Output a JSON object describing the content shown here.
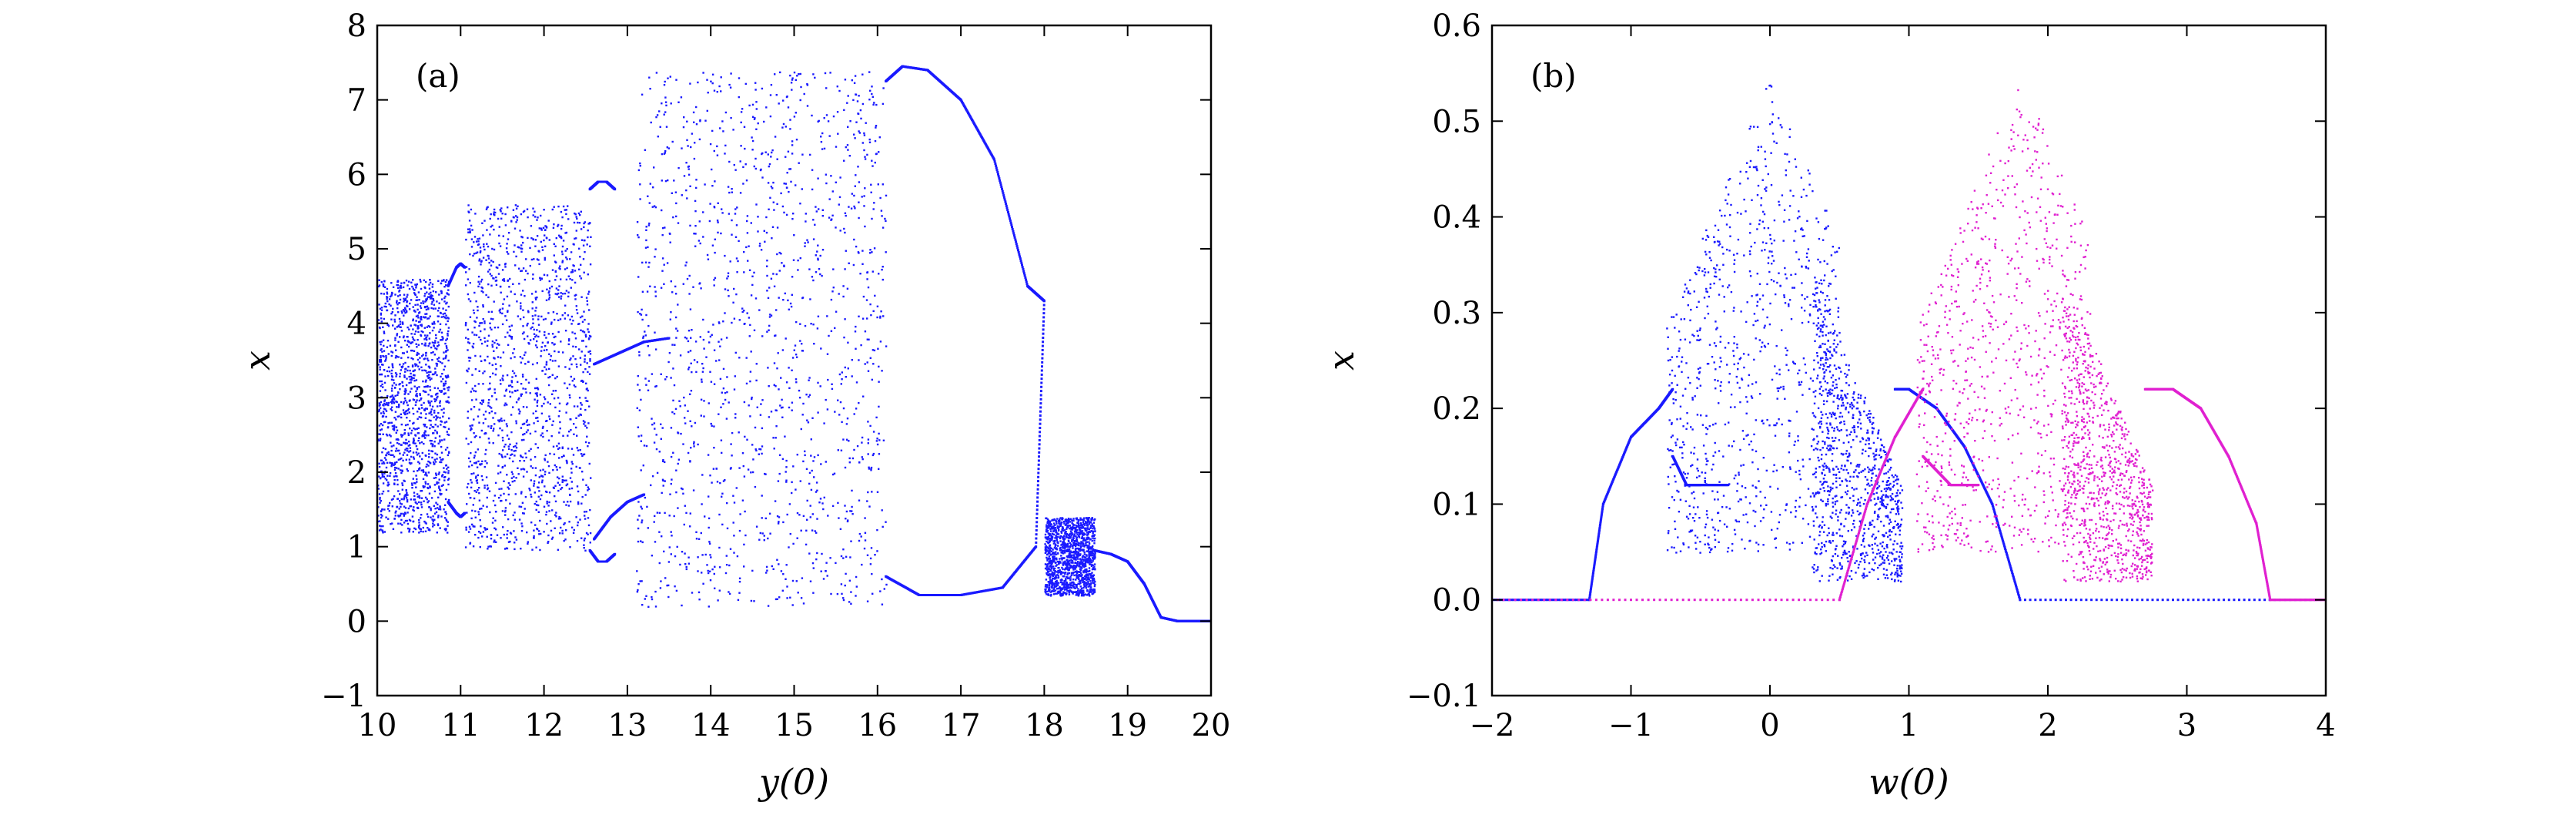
{
  "chart_data": [
    {
      "panel": "(a)",
      "type": "scatter",
      "xlabel": "y(0)",
      "ylabel": "x",
      "xlim": [
        10,
        20
      ],
      "ylim": [
        -1,
        8
      ],
      "x_ticks": [
        10,
        11,
        12,
        13,
        14,
        15,
        16,
        17,
        18,
        19,
        20
      ],
      "y_ticks": [
        -1,
        0,
        1,
        2,
        3,
        4,
        5,
        6,
        7,
        8
      ],
      "grid": false,
      "series": [
        {
          "color": "#1a1aff",
          "periodic_branches": [
            {
              "x": [
                10.85,
                10.95,
                11.0,
                11.05
              ],
              "y": [
                4.5,
                4.75,
                4.8,
                4.75
              ]
            },
            {
              "x": [
                10.85,
                10.95,
                11.0,
                11.05
              ],
              "y": [
                1.6,
                1.45,
                1.4,
                1.45
              ]
            },
            {
              "x": [
                12.55,
                12.65,
                12.75,
                12.85
              ],
              "y": [
                5.8,
                5.9,
                5.9,
                5.8
              ]
            },
            {
              "x": [
                12.55,
                12.65,
                12.75,
                12.85
              ],
              "y": [
                0.95,
                0.8,
                0.8,
                0.9
              ]
            },
            {
              "x": [
                12.6,
                12.9,
                13.2,
                13.5
              ],
              "y": [
                3.45,
                3.6,
                3.75,
                3.8
              ]
            },
            {
              "x": [
                12.6,
                12.8,
                13.0,
                13.2
              ],
              "y": [
                1.1,
                1.4,
                1.6,
                1.7
              ]
            },
            {
              "x": [
                16.1,
                16.3,
                16.6,
                17.0,
                17.4,
                17.8,
                18.0
              ],
              "y": [
                7.25,
                7.45,
                7.4,
                7.0,
                6.2,
                4.5,
                4.3
              ]
            },
            {
              "x": [
                16.1,
                16.5,
                17.0,
                17.5,
                17.9,
                18.0
              ],
              "y": [
                0.6,
                0.35,
                0.35,
                0.45,
                1.0,
                4.3
              ]
            },
            {
              "x": [
                18.6,
                18.8,
                19.0,
                19.2,
                19.4,
                19.6,
                20.0
              ],
              "y": [
                0.95,
                0.9,
                0.8,
                0.5,
                0.05,
                0.0,
                0.0
              ]
            }
          ]
        }
      ]
    },
    {
      "panel": "(b)",
      "type": "scatter",
      "xlabel": "w(0)",
      "ylabel": "x",
      "xlim": [
        -2,
        4
      ],
      "ylim": [
        -0.1,
        0.6
      ],
      "x_ticks": [
        -2,
        -1,
        0,
        1,
        2,
        3,
        4
      ],
      "y_ticks": [
        -0.1,
        0.0,
        0.1,
        0.2,
        0.3,
        0.4,
        0.5,
        0.6
      ],
      "grid": false,
      "series": [
        {
          "color": "#1a1aff",
          "periodic_branches": [
            {
              "x": [
                -2.0,
                -1.3
              ],
              "y": [
                0.0,
                0.0
              ]
            },
            {
              "x": [
                -1.3,
                -1.2,
                -1.0,
                -0.8,
                -0.7
              ],
              "y": [
                0.0,
                0.1,
                0.17,
                0.2,
                0.22
              ]
            },
            {
              "x": [
                -0.7,
                -0.6,
                -0.5,
                -0.3
              ],
              "y": [
                0.15,
                0.12,
                0.12,
                0.12
              ]
            },
            {
              "x": [
                0.9,
                1.0,
                1.2,
                1.4,
                1.6,
                1.8
              ],
              "y": [
                0.22,
                0.22,
                0.2,
                0.16,
                0.1,
                0.0
              ]
            },
            {
              "x": [
                1.8,
                4.0
              ],
              "y": [
                0.0,
                0.0
              ]
            }
          ]
        },
        {
          "color": "#e020d0",
          "periodic_branches": [
            {
              "x": [
                -2.0,
                0.5
              ],
              "y": [
                0.0,
                0.0
              ]
            },
            {
              "x": [
                0.5,
                0.7,
                0.9,
                1.1
              ],
              "y": [
                0.0,
                0.1,
                0.17,
                0.22
              ]
            },
            {
              "x": [
                1.1,
                1.3,
                1.5
              ],
              "y": [
                0.15,
                0.12,
                0.12
              ]
            },
            {
              "x": [
                2.7,
                2.9,
                3.1,
                3.3,
                3.5,
                3.6
              ],
              "y": [
                0.22,
                0.22,
                0.2,
                0.15,
                0.08,
                0.0
              ]
            },
            {
              "x": [
                3.6,
                4.0
              ],
              "y": [
                0.0,
                0.0
              ]
            }
          ]
        }
      ]
    }
  ]
}
